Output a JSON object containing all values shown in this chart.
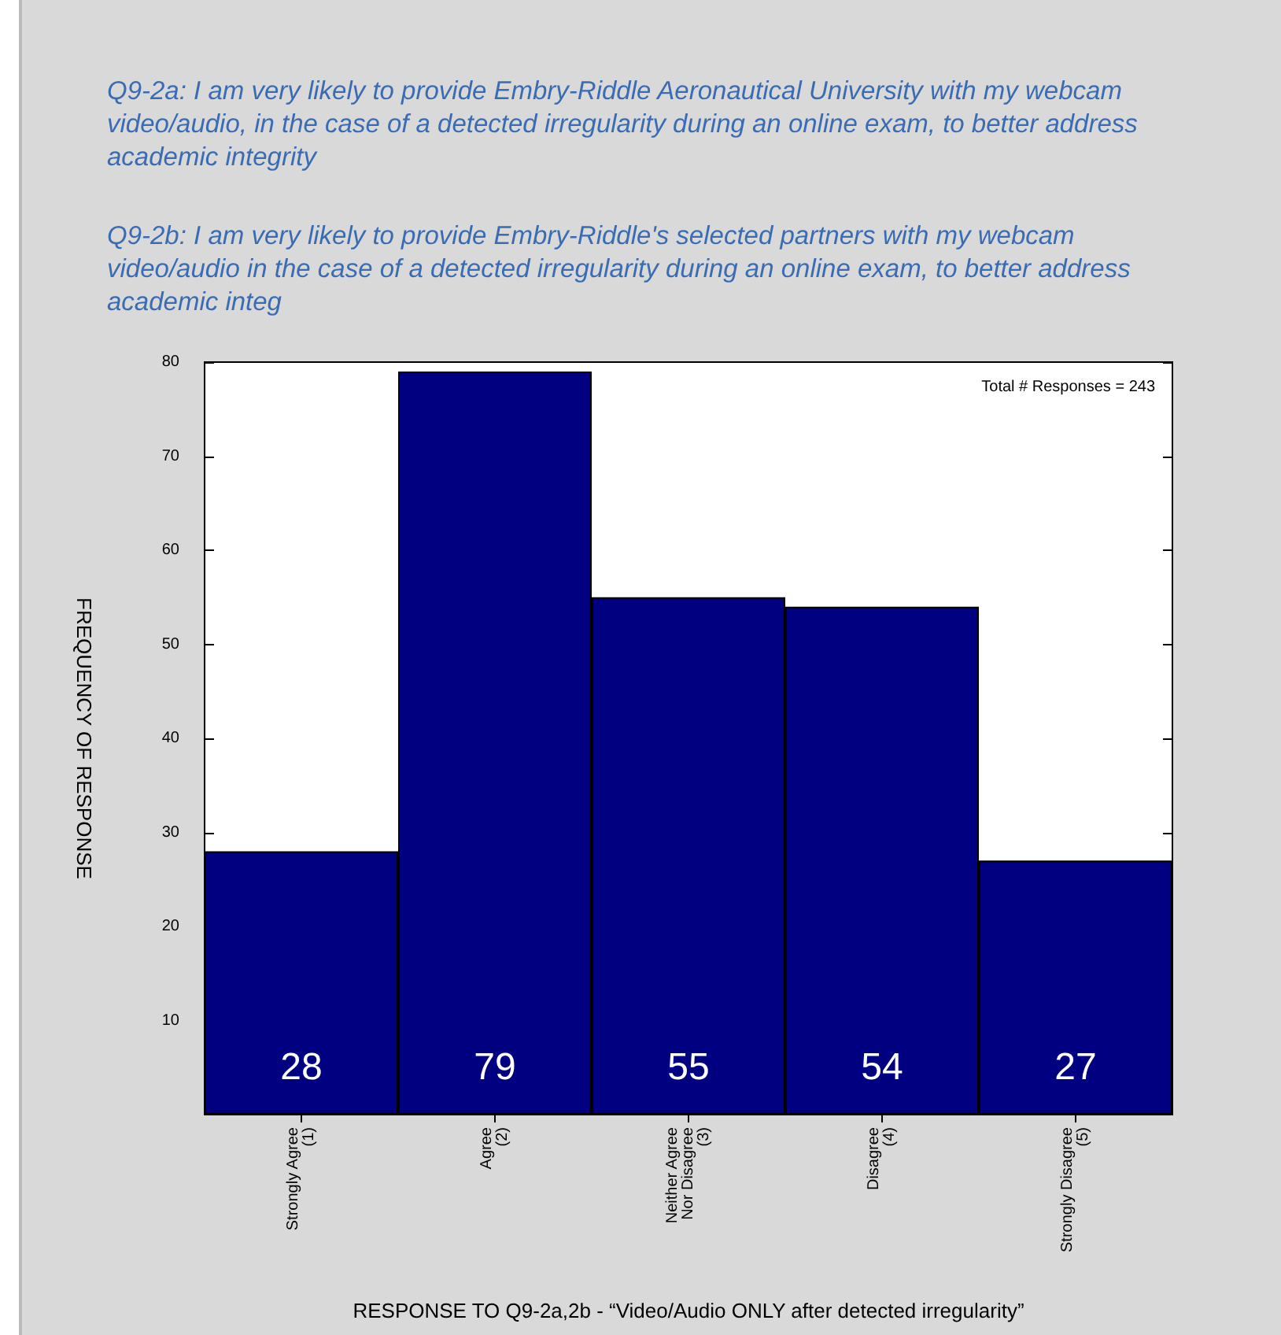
{
  "chart_data": {
    "type": "bar",
    "title": "Q9-2a: I am very likely to provide Embry-Riddle Aeronautical University with my webcam video/audio, in the case of a detected irregularity during an online exam, to better address academic integrity",
    "subtitle": "Q9-2b: I am very likely to provide Embry-Riddle's selected partners with my webcam video/audio in the case of a detected irregularity during an online exam, to better address academic integ",
    "xlabel": "RESPONSE TO Q9-2a,2b - “Video/Audio ONLY after detected irregularity”",
    "ylabel": "FREQUENCY OF RESPONSE",
    "annotations": [
      "Total # Responses = 243"
    ],
    "categories": [
      "Strongly Agree\n(1)",
      "Agree\n(2)",
      "Neither Agree\nNor Disagree\n(3)",
      "Disagree\n(4)",
      "Strongly Disagree\n(5)"
    ],
    "values": [
      28,
      79,
      55,
      54,
      27
    ],
    "color": "#000080",
    "ylim": [
      0,
      80
    ],
    "yticks": [
      10,
      20,
      30,
      40,
      50,
      60,
      70,
      80
    ],
    "data_labels": true
  }
}
